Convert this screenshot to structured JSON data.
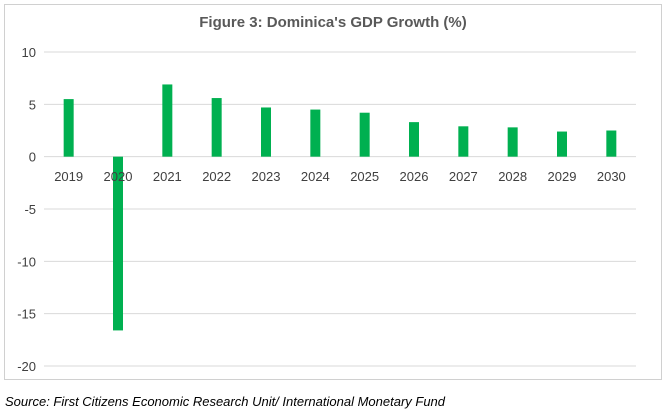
{
  "chart_data": {
    "type": "bar",
    "title": "Figure 3: Dominica's GDP Growth (%)",
    "categories": [
      "2019",
      "2020",
      "2021",
      "2022",
      "2023",
      "2024",
      "2025",
      "2026",
      "2027",
      "2028",
      "2029",
      "2030"
    ],
    "series": [
      {
        "values": [
          5.5,
          -16.6,
          6.9,
          5.6,
          4.7,
          4.5,
          4.2,
          3.3,
          2.9,
          2.8,
          2.4,
          2.5
        ]
      }
    ],
    "ylim": [
      -20,
      10
    ],
    "yticks": [
      10,
      5,
      0,
      -5,
      -10,
      -15,
      -20
    ],
    "grid": true,
    "legend": "none",
    "bar_color": "#00b050"
  },
  "source": "Source: First Citizens Economic Research Unit/ International Monetary Fund"
}
